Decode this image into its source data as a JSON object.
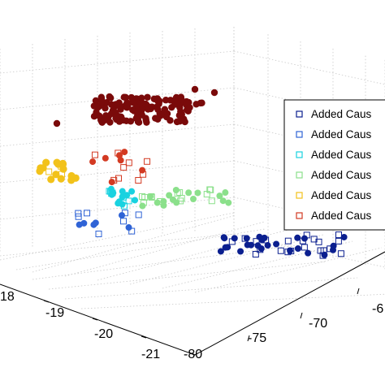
{
  "chart_data": {
    "type": "scatter3d",
    "title": "",
    "grid": true,
    "legend_placement": "right (cropped at image edge)",
    "axes": {
      "z_left_ticks": [
        "18",
        "-19",
        "-20",
        "-21"
      ],
      "x_mid_ticks": [
        "-80",
        "-75",
        "-70",
        "-6"
      ],
      "note": "tick labels as printed; left axis label '18' appears cut off"
    },
    "legend": [
      {
        "label": "Added Caus",
        "marker": "square-open",
        "color": "#0b1f8f"
      },
      {
        "label": "Added Caus",
        "marker": "square-open",
        "color": "#2f63d6"
      },
      {
        "label": "Added Caus",
        "marker": "square-open",
        "color": "#19d2e0"
      },
      {
        "label": "Added Caus",
        "marker": "square-open",
        "color": "#8be08b"
      },
      {
        "label": "Added Caus",
        "marker": "square-open",
        "color": "#f2c21a"
      },
      {
        "label": "Added Caus",
        "marker": "square-open",
        "color": "#d33a22"
      }
    ],
    "clusters": [
      {
        "name": "dark-red",
        "color": "#7a0a0a",
        "approx_points": 160
      },
      {
        "name": "red",
        "color": "#d33a22",
        "approx_points": 14
      },
      {
        "name": "yellow",
        "color": "#f2c21a",
        "approx_points": 20
      },
      {
        "name": "cyan",
        "color": "#19d2e0",
        "approx_points": 18
      },
      {
        "name": "light-green",
        "color": "#8be08b",
        "approx_points": 30
      },
      {
        "name": "blue",
        "color": "#2f63d6",
        "approx_points": 14
      },
      {
        "name": "navy",
        "color": "#0b1f8f",
        "approx_points": 48
      }
    ]
  }
}
